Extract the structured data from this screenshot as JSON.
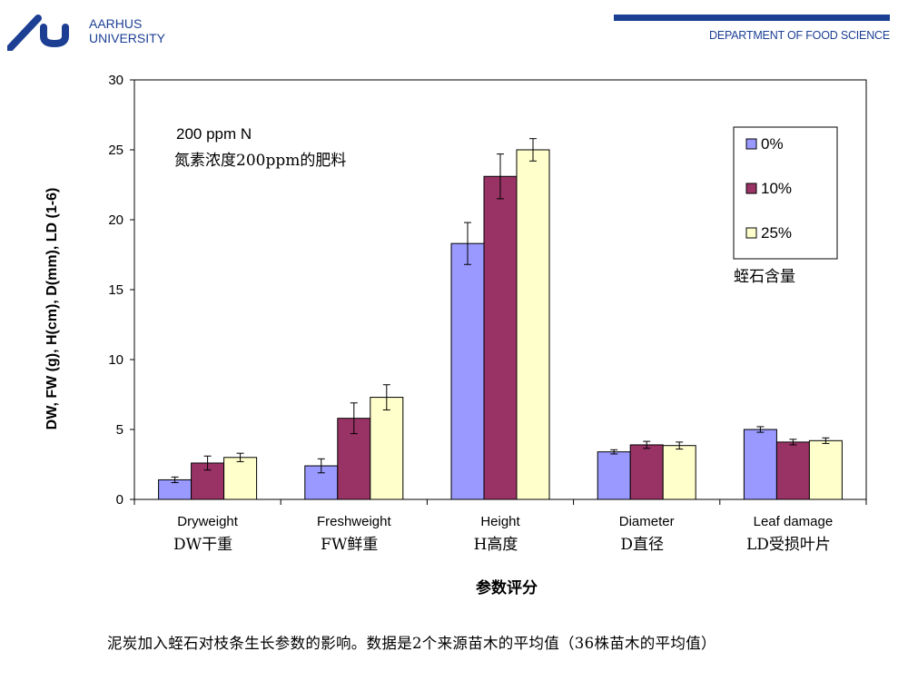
{
  "header": {
    "university_line1": "AARHUS",
    "university_line2": "UNIVERSITY",
    "department": "DEPARTMENT OF FOOD SCIENCE",
    "brand_color": "#1c3f94"
  },
  "chart_data": {
    "type": "bar",
    "ylabel": "DW, FW (g), H(cm), D(mm), LD (1-6)",
    "xlabel": "参数评分",
    "ylim": [
      0,
      30
    ],
    "yticks": [
      0,
      5,
      10,
      15,
      20,
      25,
      30
    ],
    "grid": false,
    "legend_position": "top-right",
    "legend_title": "蛭石含量",
    "categories": [
      "Dryweight",
      "Freshweight",
      "Height",
      "Diameter",
      "Leaf damage"
    ],
    "categories_zh": [
      "DW干重",
      "FW鲜重",
      "H高度",
      "D直径",
      "LD受损叶片"
    ],
    "series": [
      {
        "name": "0%",
        "color": "#9999ff",
        "values": [
          1.4,
          2.4,
          18.3,
          3.4,
          5.0
        ],
        "errors": [
          0.2,
          0.5,
          1.5,
          0.15,
          0.2
        ]
      },
      {
        "name": "10%",
        "color": "#993366",
        "values": [
          2.6,
          5.8,
          23.1,
          3.9,
          4.1
        ],
        "errors": [
          0.5,
          1.1,
          1.6,
          0.25,
          0.2
        ]
      },
      {
        "name": "25%",
        "color": "#ffffcc",
        "values": [
          3.0,
          7.3,
          25.0,
          3.85,
          4.2
        ],
        "errors": [
          0.3,
          0.9,
          0.8,
          0.25,
          0.2
        ]
      }
    ],
    "annotation_line1": "200 ppm N",
    "annotation_line2": "氮素浓度200ppm的肥料"
  },
  "caption": "泥炭加入蛭石对枝条生长参数的影响。数据是2个来源苗木的平均值（36株苗木的平均值）"
}
